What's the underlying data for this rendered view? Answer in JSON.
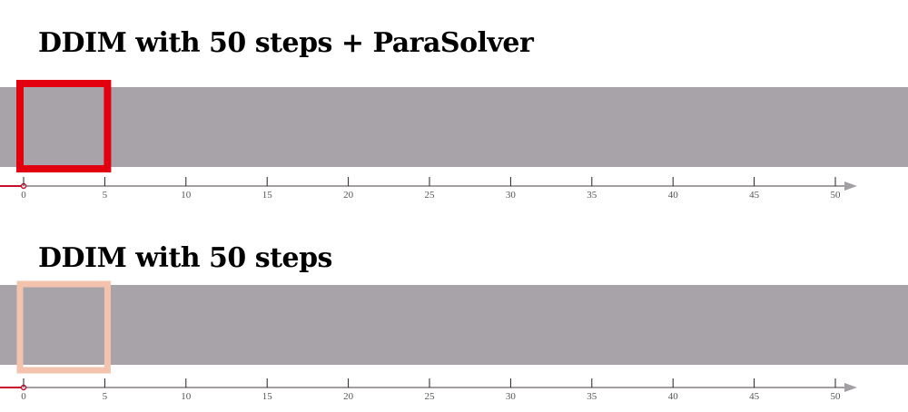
{
  "panels": [
    {
      "title": "DDIM with 50 steps + ParaSolver",
      "window_color": "#e3000f",
      "window_start_step": 0,
      "window_end_step": 5,
      "progress_step": 0
    },
    {
      "title": "DDIM with 50 steps",
      "window_color": "#f3c3ad",
      "window_start_step": 0,
      "window_end_step": 5,
      "progress_step": 0
    }
  ],
  "axis": {
    "ticks": [
      0,
      5,
      10,
      15,
      20,
      25,
      30,
      35,
      40,
      45,
      50
    ],
    "tick_labels": [
      "0",
      "5",
      "10",
      "15",
      "20",
      "25",
      "30",
      "35",
      "40",
      "45",
      "50"
    ],
    "min": 0,
    "max": 50,
    "axis_color": "#a39fa3",
    "progress_color": "#c8102e"
  },
  "colors": {
    "strip": "#a7a3a8",
    "background": "#ffffff"
  }
}
